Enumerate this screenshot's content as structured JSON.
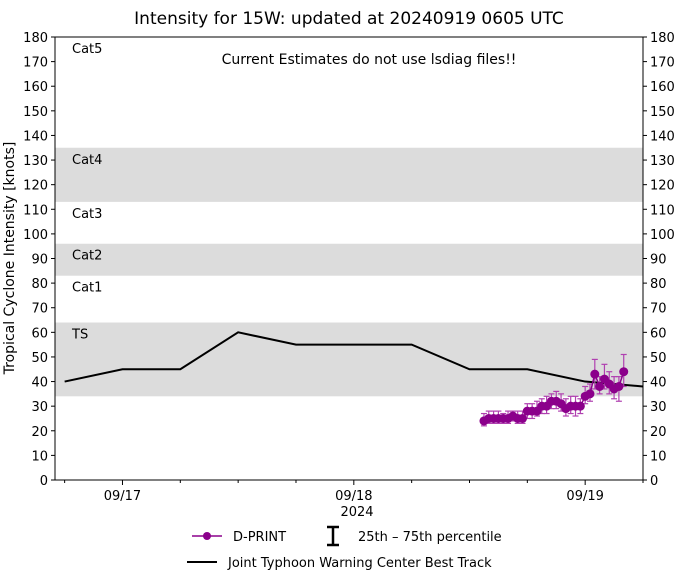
{
  "chart_data": {
    "type": "line",
    "title": "Intensity for 15W: updated at 20240919 0605 UTC",
    "annotation": "Current Estimates do not use lsdiag files!!",
    "ylabel": "Tropical Cyclone Intensity [knots]",
    "xlabel": "2024",
    "ylim": [
      0,
      180
    ],
    "yticks": [
      0,
      10,
      20,
      30,
      40,
      50,
      60,
      70,
      80,
      90,
      100,
      110,
      120,
      130,
      140,
      150,
      160,
      170,
      180
    ],
    "xlim": [
      "09/16 17:00",
      "09/19 06:00"
    ],
    "xticks": [
      {
        "label": "09/17",
        "time": "09/17 00:00"
      },
      {
        "label": "09/18",
        "time": "09/18 00:00"
      },
      {
        "label": "09/19",
        "time": "09/19 00:00"
      }
    ],
    "grid": false,
    "legend_placement": "bottom",
    "categories_bands": [
      {
        "label": "TS",
        "min": 34,
        "max": 64,
        "shaded": true
      },
      {
        "label": "Cat1",
        "min": 64,
        "max": 83,
        "shaded": false
      },
      {
        "label": "Cat2",
        "min": 83,
        "max": 96,
        "shaded": true
      },
      {
        "label": "Cat3",
        "min": 96,
        "max": 113,
        "shaded": false
      },
      {
        "label": "Cat4",
        "min": 113,
        "max": 135,
        "shaded": true
      },
      {
        "label": "Cat5",
        "min": 135,
        "max": 180,
        "shaded": false
      }
    ],
    "series": [
      {
        "name": "Joint Typhoon Warning Center Best Track",
        "color": "#000000",
        "points": [
          [
            "09/16 18:00",
            40
          ],
          [
            "09/17 00:00",
            45
          ],
          [
            "09/17 06:00",
            45
          ],
          [
            "09/17 12:00",
            60
          ],
          [
            "09/17 18:00",
            55
          ],
          [
            "09/18 00:00",
            55
          ],
          [
            "09/18 06:00",
            55
          ],
          [
            "09/18 12:00",
            45
          ],
          [
            "09/18 18:00",
            45
          ],
          [
            "09/19 00:00",
            40
          ],
          [
            "09/19 06:00",
            38
          ]
        ]
      },
      {
        "name": "D-PRINT",
        "color": "#8b008b",
        "points": [
          [
            "09/18 13:30",
            24,
            22,
            27
          ],
          [
            "09/18 14:00",
            25,
            23,
            28
          ],
          [
            "09/18 14:30",
            25,
            23,
            28
          ],
          [
            "09/18 15:00",
            25,
            23,
            28
          ],
          [
            "09/18 15:30",
            25,
            23,
            27
          ],
          [
            "09/18 16:00",
            25,
            23,
            28
          ],
          [
            "09/18 16:30",
            26,
            24,
            28
          ],
          [
            "09/18 17:00",
            25,
            23,
            28
          ],
          [
            "09/18 17:30",
            25,
            23,
            28
          ],
          [
            "09/18 18:00",
            28,
            25,
            31
          ],
          [
            "09/18 18:30",
            28,
            25,
            31
          ],
          [
            "09/18 19:00",
            28,
            26,
            32
          ],
          [
            "09/18 19:30",
            30,
            27,
            33
          ],
          [
            "09/18 20:00",
            30,
            27,
            34
          ],
          [
            "09/18 20:30",
            32,
            29,
            35
          ],
          [
            "09/18 21:00",
            32,
            29,
            36
          ],
          [
            "09/18 21:30",
            31,
            28,
            35
          ],
          [
            "09/18 22:00",
            29,
            26,
            33
          ],
          [
            "09/18 22:30",
            30,
            27,
            34
          ],
          [
            "09/18 23:00",
            30,
            26,
            34
          ],
          [
            "09/18 23:30",
            30,
            27,
            33
          ],
          [
            "09/19 00:00",
            34,
            31,
            38
          ],
          [
            "09/19 00:30",
            35,
            32,
            39
          ],
          [
            "09/19 01:00",
            43,
            37,
            49
          ],
          [
            "09/19 01:30",
            38,
            35,
            42
          ],
          [
            "09/19 02:00",
            41,
            37,
            47
          ],
          [
            "09/19 02:30",
            39,
            35,
            44
          ],
          [
            "09/19 03:00",
            37,
            33,
            42
          ],
          [
            "09/19 03:30",
            38,
            32,
            42
          ],
          [
            "09/19 04:00",
            44,
            38,
            51
          ]
        ]
      }
    ],
    "legend": {
      "dprint": "D-PRINT",
      "percentile": "25th – 75th percentile",
      "best_track": "Joint Typhoon Warning Center Best Track"
    }
  }
}
